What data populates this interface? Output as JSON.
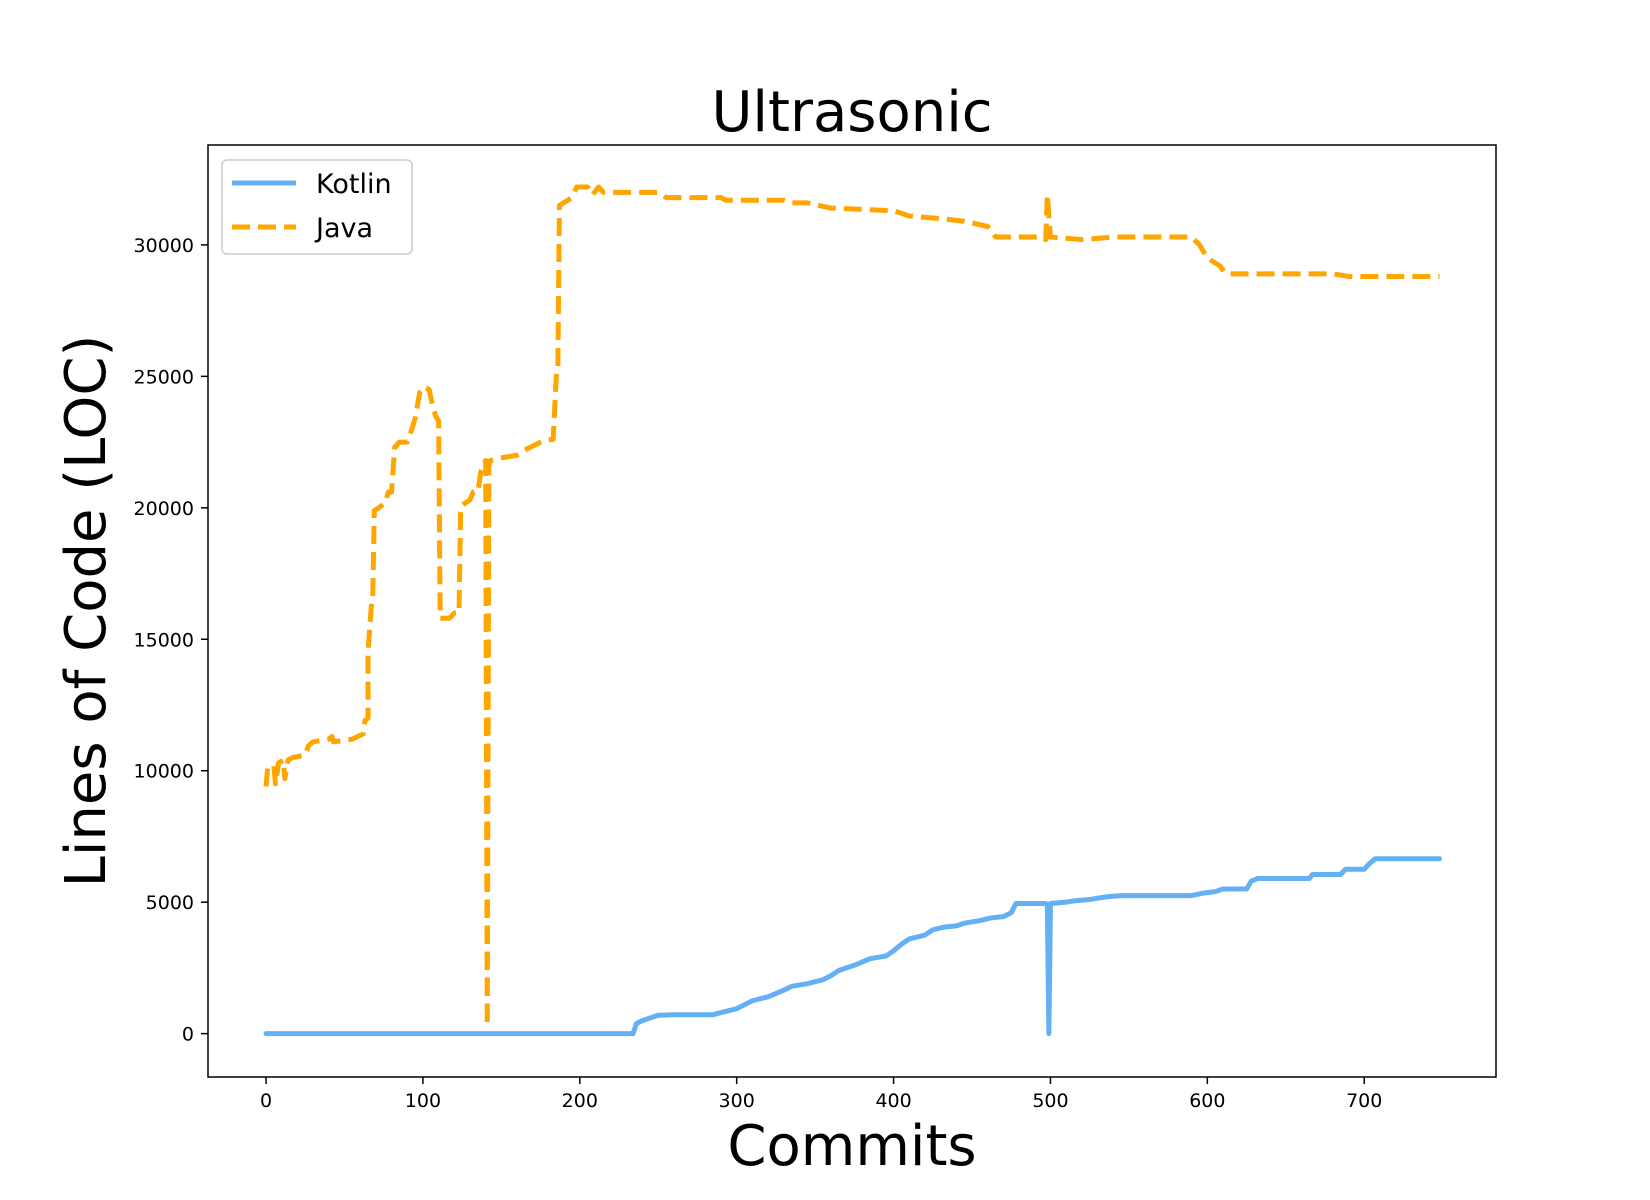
{
  "chart_data": {
    "type": "line",
    "title": "Ultrasonic",
    "xlabel": "Commits",
    "ylabel": "Lines of Code (LOC)",
    "xlim": [
      -37,
      784
    ],
    "ylim": [
      -1650,
      33800
    ],
    "xticks": [
      0,
      100,
      200,
      300,
      400,
      500,
      600,
      700
    ],
    "yticks": [
      0,
      5000,
      10000,
      15000,
      20000,
      25000,
      30000
    ],
    "grid": false,
    "legend_position": "top-left",
    "series": [
      {
        "name": "Kotlin",
        "color": "#64b0f5",
        "style": "solid",
        "points": [
          [
            0,
            0
          ],
          [
            234,
            0
          ],
          [
            236,
            380
          ],
          [
            240,
            500
          ],
          [
            245,
            600
          ],
          [
            250,
            700
          ],
          [
            260,
            720
          ],
          [
            285,
            720
          ],
          [
            290,
            800
          ],
          [
            300,
            950
          ],
          [
            305,
            1100
          ],
          [
            310,
            1250
          ],
          [
            320,
            1400
          ],
          [
            330,
            1650
          ],
          [
            335,
            1800
          ],
          [
            345,
            1900
          ],
          [
            355,
            2050
          ],
          [
            360,
            2200
          ],
          [
            365,
            2400
          ],
          [
            375,
            2600
          ],
          [
            385,
            2850
          ],
          [
            395,
            2950
          ],
          [
            400,
            3150
          ],
          [
            405,
            3400
          ],
          [
            410,
            3600
          ],
          [
            420,
            3750
          ],
          [
            425,
            3950
          ],
          [
            432,
            4050
          ],
          [
            440,
            4100
          ],
          [
            445,
            4200
          ],
          [
            455,
            4300
          ],
          [
            462,
            4400
          ],
          [
            470,
            4450
          ],
          [
            475,
            4600
          ],
          [
            478,
            4950
          ],
          [
            497,
            4950
          ],
          [
            498,
            4900
          ],
          [
            499,
            0
          ],
          [
            500,
            4950
          ],
          [
            510,
            5000
          ],
          [
            515,
            5050
          ],
          [
            525,
            5100
          ],
          [
            535,
            5200
          ],
          [
            545,
            5250
          ],
          [
            590,
            5250
          ],
          [
            598,
            5350
          ],
          [
            605,
            5400
          ],
          [
            610,
            5500
          ],
          [
            625,
            5500
          ],
          [
            628,
            5800
          ],
          [
            632,
            5900
          ],
          [
            665,
            5900
          ],
          [
            667,
            6050
          ],
          [
            685,
            6050
          ],
          [
            688,
            6250
          ],
          [
            700,
            6250
          ],
          [
            703,
            6450
          ],
          [
            707,
            6650
          ],
          [
            748,
            6650
          ]
        ]
      },
      {
        "name": "Java",
        "color": "#ffa500",
        "style": "dashed",
        "points": [
          [
            0,
            9400
          ],
          [
            1,
            10100
          ],
          [
            5,
            10200
          ],
          [
            6,
            9500
          ],
          [
            8,
            10300
          ],
          [
            11,
            10400
          ],
          [
            12,
            9700
          ],
          [
            14,
            10400
          ],
          [
            17,
            10500
          ],
          [
            25,
            10600
          ],
          [
            27,
            10950
          ],
          [
            30,
            11100
          ],
          [
            40,
            11200
          ],
          [
            42,
            11300
          ],
          [
            43,
            11100
          ],
          [
            55,
            11200
          ],
          [
            62,
            11400
          ],
          [
            63,
            11900
          ],
          [
            65,
            12000
          ],
          [
            65,
            14500
          ],
          [
            67,
            16200
          ],
          [
            68,
            16500
          ],
          [
            69,
            19900
          ],
          [
            72,
            20000
          ],
          [
            76,
            20200
          ],
          [
            78,
            20600
          ],
          [
            80,
            20600
          ],
          [
            82,
            22300
          ],
          [
            85,
            22500
          ],
          [
            90,
            22500
          ],
          [
            93,
            23000
          ],
          [
            95,
            23400
          ],
          [
            98,
            24400
          ],
          [
            100,
            24600
          ],
          [
            104,
            24500
          ],
          [
            105,
            24200
          ],
          [
            108,
            23500
          ],
          [
            110,
            23300
          ],
          [
            111,
            15800
          ],
          [
            117,
            15800
          ],
          [
            120,
            16000
          ],
          [
            123,
            16000
          ],
          [
            124,
            19800
          ],
          [
            125,
            20100
          ],
          [
            130,
            20300
          ],
          [
            132,
            20600
          ],
          [
            135,
            20600
          ],
          [
            137,
            21400
          ],
          [
            139,
            21700
          ],
          [
            140,
            21800
          ],
          [
            141,
            300
          ],
          [
            142,
            21600
          ],
          [
            143,
            21800
          ],
          [
            150,
            21900
          ],
          [
            160,
            22000
          ],
          [
            165,
            22200
          ],
          [
            175,
            22500
          ],
          [
            180,
            22600
          ],
          [
            183,
            22600
          ],
          [
            185,
            25000
          ],
          [
            186,
            25300
          ],
          [
            187,
            31500
          ],
          [
            195,
            31800
          ],
          [
            198,
            32200
          ],
          [
            205,
            32200
          ],
          [
            208,
            31900
          ],
          [
            212,
            32200
          ],
          [
            215,
            32000
          ],
          [
            250,
            32000
          ],
          [
            255,
            31800
          ],
          [
            290,
            31800
          ],
          [
            293,
            31700
          ],
          [
            330,
            31700
          ],
          [
            335,
            31600
          ],
          [
            345,
            31600
          ],
          [
            360,
            31400
          ],
          [
            400,
            31300
          ],
          [
            410,
            31100
          ],
          [
            430,
            31000
          ],
          [
            445,
            30900
          ],
          [
            460,
            30700
          ],
          [
            465,
            30300
          ],
          [
            495,
            30300
          ],
          [
            497,
            30200
          ],
          [
            498,
            31900
          ],
          [
            500,
            30300
          ],
          [
            520,
            30200
          ],
          [
            540,
            30300
          ],
          [
            590,
            30300
          ],
          [
            595,
            30000
          ],
          [
            600,
            29500
          ],
          [
            608,
            29200
          ],
          [
            612,
            28900
          ],
          [
            680,
            28900
          ],
          [
            690,
            28800
          ],
          [
            748,
            28800
          ]
        ]
      }
    ]
  }
}
